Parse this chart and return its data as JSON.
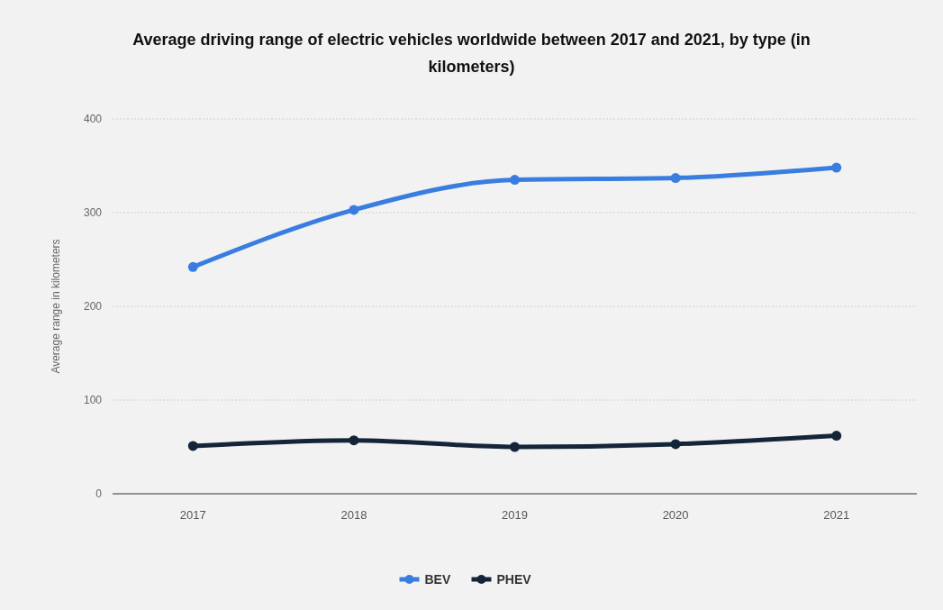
{
  "chart_data": {
    "type": "line",
    "title": "Average driving range of electric vehicles worldwide between 2017 and 2021, by type (in kilometers)",
    "ylabel": "Average range in kilometers",
    "categories": [
      "2017",
      "2018",
      "2019",
      "2020",
      "2021"
    ],
    "series": [
      {
        "name": "BEV",
        "color": "#3a7de0",
        "values": [
          242,
          303,
          335,
          337,
          348
        ]
      },
      {
        "name": "PHEV",
        "color": "#14253a",
        "values": [
          51,
          57,
          50,
          53,
          62
        ]
      }
    ],
    "ylim": [
      0,
      400
    ],
    "yticks": [
      0,
      100,
      200,
      300,
      400
    ],
    "grid": "y",
    "legend": "bottom",
    "marker": "circle",
    "line_style": "solid"
  }
}
